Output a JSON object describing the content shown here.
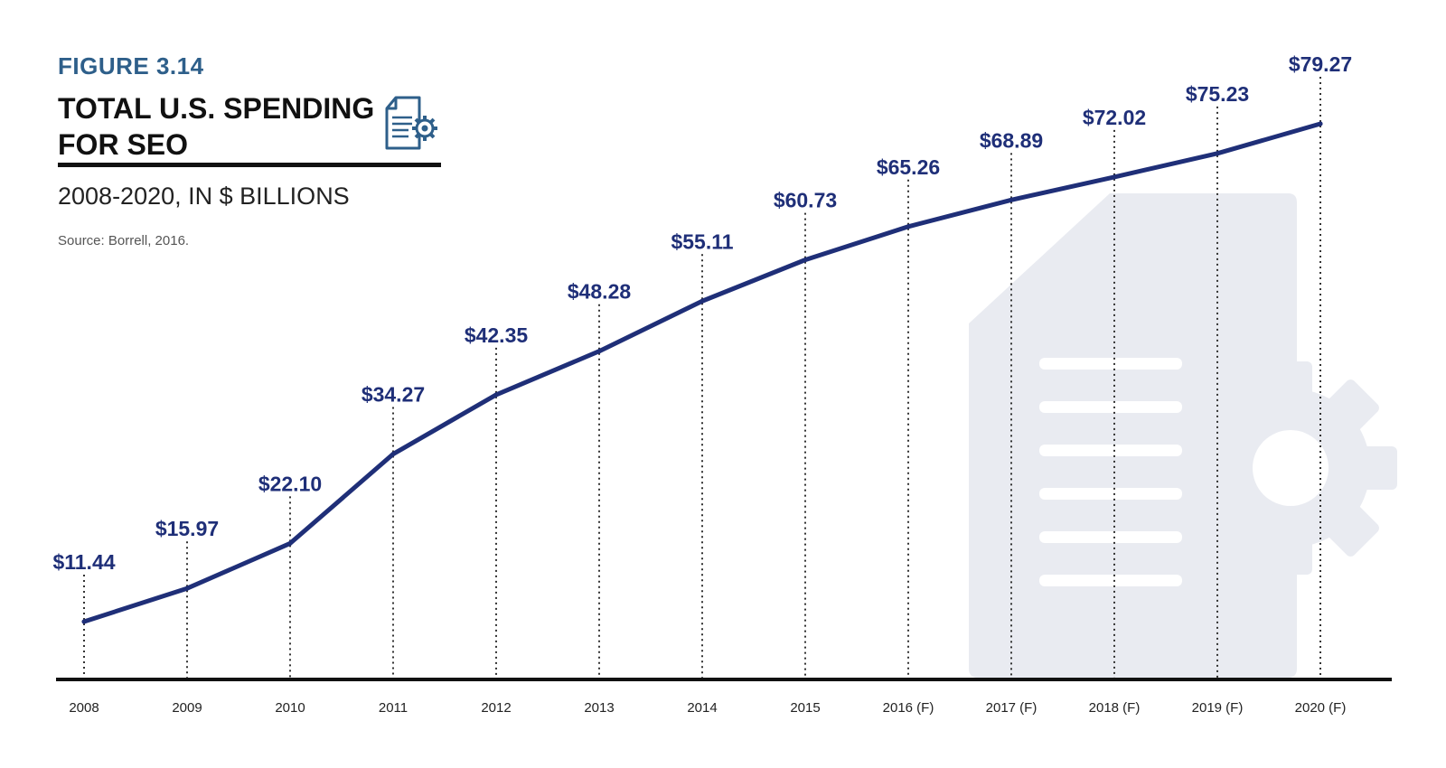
{
  "header": {
    "figure_label": "FIGURE 3.14",
    "title_line1": "TOTAL U.S. SPENDING",
    "title_line2": "FOR SEO",
    "subtitle": "2008-2020, IN $ BILLIONS",
    "source": "Source: Borrell, 2016."
  },
  "colors": {
    "line": "#1f2f78",
    "label": "#1f2f78",
    "axis": "#111111",
    "figure_label": "#2e5f8a",
    "watermark": "#e9ebf1"
  },
  "icons": {
    "title_icon": "document-gear-icon",
    "background": "document-gear-watermark-icon"
  },
  "chart_data": {
    "type": "line",
    "title": "TOTAL U.S. SPENDING FOR SEO",
    "subtitle": "2008-2020, IN $ BILLIONS",
    "source": "Source: Borrell, 2016.",
    "xlabel": "",
    "ylabel": "",
    "ylim": [
      0,
      85
    ],
    "grid": "dotted vertical drop lines",
    "categories": [
      "2008",
      "2009",
      "2010",
      "2011",
      "2012",
      "2013",
      "2014",
      "2015",
      "2016 (F)",
      "2017 (F)",
      "2018 (F)",
      "2019 (F)",
      "2020 (F)"
    ],
    "series": [
      {
        "name": "Total U.S. spending for SEO",
        "values": [
          11.44,
          15.97,
          22.1,
          34.27,
          42.35,
          48.28,
          55.11,
          60.73,
          65.26,
          68.89,
          72.02,
          75.23,
          79.27
        ],
        "labels": [
          "$11.44",
          "$15.97",
          "$22.10",
          "$34.27",
          "$42.35",
          "$48.28",
          "$55.11",
          "$60.73",
          "$65.26",
          "$68.89",
          "$72.02",
          "$75.23",
          "$79.27"
        ]
      }
    ]
  }
}
